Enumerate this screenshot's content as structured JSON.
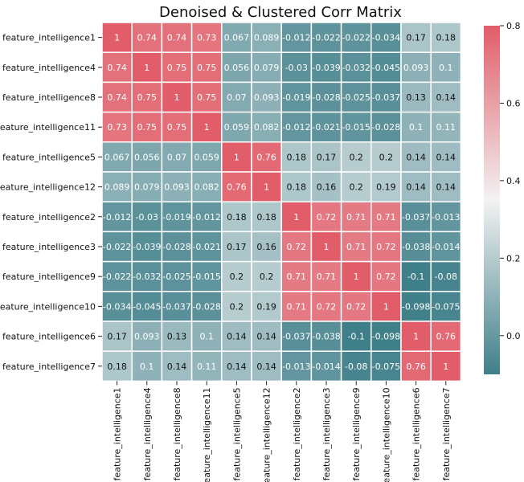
{
  "chart_data": {
    "type": "heatmap",
    "title": "Denoised & Clustered Corr Matrix",
    "xlabel": "",
    "ylabel": "",
    "grid": false,
    "legend_placement": "right",
    "labels": [
      "feature_intelligence1",
      "feature_intelligence4",
      "feature_intelligence8",
      "feature_intelligence11",
      "feature_intelligence5",
      "feature_intelligence12",
      "feature_intelligence2",
      "feature_intelligence3",
      "feature_intelligence9",
      "feature_intelligence10",
      "feature_intelligence6",
      "feature_intelligence7"
    ],
    "values": [
      [
        "1",
        "0.74",
        "0.74",
        "0.73",
        "0.067",
        "0.089",
        "-0.012",
        "-0.022",
        "-0.022",
        "-0.034",
        "0.17",
        "0.18"
      ],
      [
        "0.74",
        "1",
        "0.75",
        "0.75",
        "0.056",
        "0.079",
        "-0.03",
        "-0.039",
        "-0.032",
        "-0.045",
        "0.093",
        "0.1"
      ],
      [
        "0.74",
        "0.75",
        "1",
        "0.75",
        "0.07",
        "0.093",
        "-0.019",
        "-0.028",
        "-0.025",
        "-0.037",
        "0.13",
        "0.14"
      ],
      [
        "0.73",
        "0.75",
        "0.75",
        "1",
        "0.059",
        "0.082",
        "-0.012",
        "-0.021",
        "-0.015",
        "-0.028",
        "0.1",
        "0.11"
      ],
      [
        "0.067",
        "0.056",
        "0.07",
        "0.059",
        "1",
        "0.76",
        "0.18",
        "0.17",
        "0.2",
        "0.2",
        "0.14",
        "0.14"
      ],
      [
        "0.089",
        "0.079",
        "0.093",
        "0.082",
        "0.76",
        "1",
        "0.18",
        "0.16",
        "0.2",
        "0.19",
        "0.14",
        "0.14"
      ],
      [
        "-0.012",
        "-0.03",
        "-0.019",
        "-0.012",
        "0.18",
        "0.18",
        "1",
        "0.72",
        "0.71",
        "0.71",
        "-0.037",
        "-0.013"
      ],
      [
        "-0.022",
        "-0.039",
        "-0.028",
        "-0.021",
        "0.17",
        "0.16",
        "0.72",
        "1",
        "0.71",
        "0.72",
        "-0.038",
        "-0.014"
      ],
      [
        "-0.022",
        "-0.032",
        "-0.025",
        "-0.015",
        "0.2",
        "0.2",
        "0.71",
        "0.71",
        "1",
        "0.72",
        "-0.1",
        "-0.08"
      ],
      [
        "-0.034",
        "-0.045",
        "-0.037",
        "-0.028",
        "0.2",
        "0.19",
        "0.71",
        "0.72",
        "0.72",
        "1",
        "-0.098",
        "-0.075"
      ],
      [
        "0.17",
        "0.093",
        "0.13",
        "0.1",
        "0.14",
        "0.14",
        "-0.037",
        "-0.038",
        "-0.1",
        "-0.098",
        "1",
        "0.76"
      ],
      [
        "0.18",
        "0.1",
        "0.14",
        "0.11",
        "0.14",
        "0.14",
        "-0.013",
        "-0.014",
        "-0.08",
        "-0.075",
        "0.76",
        "1"
      ]
    ],
    "colorbar": {
      "min": -0.1,
      "max": 0.8,
      "ticks": [
        "0.0",
        "0.2",
        "0.4",
        "0.6",
        "0.8"
      ],
      "tick_values": [
        0.0,
        0.2,
        0.4,
        0.6,
        0.8
      ],
      "colors": {
        "low": "#3f7f89",
        "mid": "#f2f2f2",
        "high": "#e15d69"
      }
    },
    "annotation_text_colors": {
      "dark": "#111111",
      "light": "#ffffff"
    },
    "cell_border_color": "#ffffff"
  }
}
